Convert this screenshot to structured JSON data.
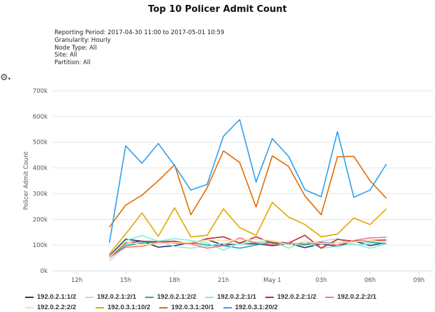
{
  "gear_menu": {
    "icon": "gear-icon",
    "caret": "▾"
  },
  "chart_data": {
    "type": "line",
    "title": "Top 10 Policer Admit Count",
    "subtitle_lines": [
      "Reporting Period: 2017-04-30 11:00 to 2017-05-01 10:59",
      "Granularity: Hourly",
      "Node Type: All",
      "Site: All",
      "Partition: All"
    ],
    "ylabel": "Policer Admit Count",
    "xlabel": "",
    "ylim": [
      0,
      700000
    ],
    "yticks": [
      "0k",
      "100k",
      "200k",
      "300k",
      "400k",
      "500k",
      "600k",
      "700k"
    ],
    "xticks": [
      "12h",
      "15h",
      "18h",
      "21h",
      "May 1",
      "03h",
      "06h",
      "09h"
    ],
    "x": [
      "14h",
      "15h",
      "16h",
      "17h",
      "18h",
      "19h",
      "20h",
      "21h",
      "22h",
      "23h",
      "May 1",
      "01h",
      "02h",
      "03h",
      "04h",
      "05h",
      "06h",
      "07h"
    ],
    "grid": true,
    "legend_position": "bottom",
    "series": [
      {
        "name": "192.0.2.1:1/2",
        "color": "#1f3a7a",
        "values": [
          58000,
          123000,
          115000,
          92000,
          98000,
          110000,
          121000,
          100000,
          105000,
          105000,
          98000,
          107000,
          90000,
          105000,
          95000,
          116000,
          98000,
          110000
        ]
      },
      {
        "name": "192.0.2.1:2/1",
        "color": "#b3d9f7",
        "values": [
          38000,
          100000,
          110000,
          115000,
          95000,
          88000,
          95000,
          108000,
          103000,
          112000,
          112000,
          110000,
          103000,
          115000,
          125000,
          100000,
          105000,
          110000
        ]
      },
      {
        "name": "192.0.2.1:2/2",
        "color": "#1aae9f",
        "values": [
          55000,
          98000,
          108000,
          113000,
          108000,
          110000,
          100000,
          98000,
          88000,
          100000,
          112000,
          108000,
          100000,
          110000,
          108000,
          115000,
          112000,
          105000
        ]
      },
      {
        "name": "192.0.2.2:1/1",
        "color": "#7ff0d9",
        "values": [
          52000,
          118000,
          137000,
          115000,
          125000,
          118000,
          108000,
          80000,
          108000,
          112000,
          115000,
          88000,
          115000,
          88000,
          95000,
          105000,
          88000,
          105000
        ]
      },
      {
        "name": "192.0.2.2:1/2",
        "color": "#c0282d",
        "values": [
          56000,
          108000,
          115000,
          113000,
          115000,
          105000,
          125000,
          132000,
          108000,
          132000,
          108000,
          108000,
          138000,
          88000,
          122000,
          115000,
          118000,
          120000
        ]
      },
      {
        "name": "192.0.2.2:2/1",
        "color": "#f07a7a",
        "values": [
          52000,
          92000,
          95000,
          112000,
          108000,
          105000,
          88000,
          98000,
          128000,
          108000,
          102000,
          108000,
          105000,
          112000,
          100000,
          118000,
          128000,
          130000
        ]
      },
      {
        "name": "192.0.2.2:2/2",
        "color": "#fde0a0",
        "values": [
          55000,
          112000,
          102000,
          105000,
          110000,
          110000,
          120000,
          118000,
          120000,
          122000,
          118000,
          100000,
          115000,
          105000,
          108000,
          112000,
          118000,
          112000
        ]
      },
      {
        "name": "192.0.3.1:10/2",
        "color": "#e0a800",
        "values": [
          66000,
          143000,
          225000,
          134000,
          245000,
          132000,
          138000,
          241000,
          168000,
          138000,
          266000,
          209000,
          180000,
          132000,
          143000,
          205000,
          180000,
          241000
        ]
      },
      {
        "name": "192.0.3.1:20/1",
        "color": "#e06c00",
        "values": [
          170000,
          255000,
          294000,
          350000,
          412000,
          218000,
          323000,
          466000,
          421000,
          248000,
          447000,
          406000,
          291000,
          218000,
          443000,
          445000,
          350000,
          282000
        ]
      },
      {
        "name": "192.0.3.1:20/2",
        "color": "#2d9ff0",
        "values": [
          109000,
          486000,
          418000,
          495000,
          409000,
          314000,
          336000,
          523000,
          588000,
          345000,
          514000,
          445000,
          315000,
          288000,
          541000,
          286000,
          314000,
          415000
        ]
      }
    ]
  }
}
